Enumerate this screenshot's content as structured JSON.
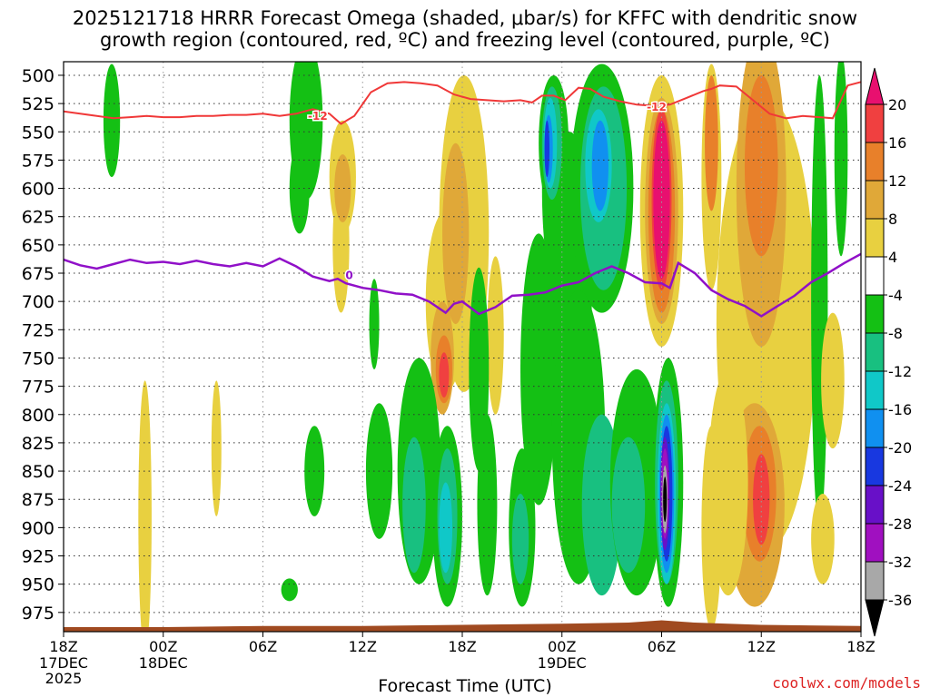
{
  "chart_data": {
    "type": "heatmap",
    "title_line1": "2025121718 HRRR Forecast Omega (shaded, μbar/s) for KFFC with dendritic snow",
    "title_line2": "growth region (contoured, red, ºC) and freezing level (contoured, purple, ºC)",
    "xlabel": "Forecast Time (UTC)",
    "credit": "coolwx.com/models",
    "y_ticks": [
      "500",
      "525",
      "550",
      "575",
      "600",
      "625",
      "650",
      "675",
      "700",
      "725",
      "750",
      "775",
      "800",
      "825",
      "850",
      "875",
      "900",
      "925",
      "950",
      "975"
    ],
    "y_levels": [
      500,
      525,
      550,
      575,
      600,
      625,
      650,
      675,
      700,
      725,
      750,
      775,
      800,
      825,
      850,
      875,
      900,
      925,
      950,
      975
    ],
    "x_ticks": [
      {
        "hour": 0,
        "line1": "18Z",
        "line2": "17DEC",
        "line3": "2025"
      },
      {
        "hour": 6,
        "line1": "00Z",
        "line2": "18DEC",
        "line3": ""
      },
      {
        "hour": 12,
        "line1": "06Z",
        "line2": "",
        "line3": ""
      },
      {
        "hour": 18,
        "line1": "12Z",
        "line2": "",
        "line3": ""
      },
      {
        "hour": 24,
        "line1": "18Z",
        "line2": "",
        "line3": ""
      },
      {
        "hour": 30,
        "line1": "00Z",
        "line2": "19DEC",
        "line3": ""
      },
      {
        "hour": 36,
        "line1": "06Z",
        "line2": "",
        "line3": ""
      },
      {
        "hour": 42,
        "line1": "12Z",
        "line2": "",
        "line3": ""
      },
      {
        "hour": 48,
        "line1": "18Z",
        "line2": "",
        "line3": ""
      }
    ],
    "x_range_hours": [
      0,
      48
    ],
    "y_range_mb": [
      488,
      992
    ],
    "colorbar": {
      "labels": [
        "20",
        "16",
        "12",
        "8",
        "4",
        "-4",
        "-8",
        "-12",
        "-16",
        "-20",
        "-24",
        "-28",
        "-32",
        "-36"
      ],
      "colors": [
        "#e8106f",
        "#f04040",
        "#e8802a",
        "#e0a838",
        "#e8d040",
        "#ffffff",
        "#14c014",
        "#18c080",
        "#10c8c8",
        "#1090f0",
        "#1838e0",
        "#6810c8",
        "#a010c0",
        "#a8a8a8",
        "#000000"
      ]
    },
    "snow_growth_label": "-12",
    "freezing_label": "0",
    "snow_growth_contour": [
      [
        0,
        532
      ],
      [
        1,
        534
      ],
      [
        2,
        536
      ],
      [
        3,
        538
      ],
      [
        4,
        537
      ],
      [
        5,
        536
      ],
      [
        6,
        537
      ],
      [
        7,
        537
      ],
      [
        8,
        536
      ],
      [
        9,
        536
      ],
      [
        10,
        535
      ],
      [
        11,
        535
      ],
      [
        12,
        534
      ],
      [
        13,
        536
      ],
      [
        14,
        534
      ],
      [
        15,
        530
      ],
      [
        16,
        534
      ],
      [
        16.7,
        543
      ],
      [
        17.5,
        536
      ],
      [
        18.5,
        515
      ],
      [
        19.5,
        507
      ],
      [
        20.5,
        506
      ],
      [
        21.5,
        507
      ],
      [
        22.5,
        509
      ],
      [
        23.5,
        517
      ],
      [
        24.5,
        521
      ],
      [
        25.5,
        522
      ],
      [
        26.5,
        523
      ],
      [
        27.5,
        522
      ],
      [
        28.2,
        524
      ],
      [
        28.8,
        518
      ],
      [
        29.5,
        518
      ],
      [
        30.2,
        522
      ],
      [
        31,
        511
      ],
      [
        31.7,
        512
      ],
      [
        32.5,
        519
      ],
      [
        33.5,
        523
      ],
      [
        34.5,
        526
      ],
      [
        35.5,
        527
      ],
      [
        36.5,
        526
      ],
      [
        37.5,
        520
      ],
      [
        38.5,
        514
      ],
      [
        39,
        512
      ],
      [
        39.5,
        509
      ],
      [
        40.5,
        510
      ],
      [
        41.5,
        522
      ],
      [
        42.5,
        534
      ],
      [
        43.5,
        538
      ],
      [
        44.5,
        536
      ],
      [
        45.5,
        537
      ],
      [
        46.3,
        538
      ],
      [
        47.2,
        509
      ],
      [
        48,
        506
      ]
    ],
    "freezing_contour": [
      [
        0,
        663
      ],
      [
        1,
        668
      ],
      [
        2,
        671
      ],
      [
        3,
        667
      ],
      [
        4,
        663
      ],
      [
        5,
        666
      ],
      [
        6,
        665
      ],
      [
        7,
        667
      ],
      [
        8,
        664
      ],
      [
        9,
        667
      ],
      [
        10,
        669
      ],
      [
        11,
        666
      ],
      [
        12,
        669
      ],
      [
        13,
        662
      ],
      [
        14,
        669
      ],
      [
        15,
        678
      ],
      [
        16,
        682
      ],
      [
        16.5,
        680
      ],
      [
        17,
        684
      ],
      [
        18,
        688
      ],
      [
        19,
        690
      ],
      [
        20,
        693
      ],
      [
        21,
        694
      ],
      [
        22,
        700
      ],
      [
        23,
        710
      ],
      [
        23.5,
        702
      ],
      [
        24,
        700
      ],
      [
        25,
        711
      ],
      [
        26,
        705
      ],
      [
        27,
        695
      ],
      [
        28,
        694
      ],
      [
        29,
        692
      ],
      [
        30,
        686
      ],
      [
        31,
        683
      ],
      [
        32,
        675
      ],
      [
        33,
        669
      ],
      [
        34,
        675
      ],
      [
        35,
        683
      ],
      [
        36,
        684
      ],
      [
        36.5,
        688
      ],
      [
        37,
        666
      ],
      [
        38,
        675
      ],
      [
        39,
        690
      ],
      [
        40,
        698
      ],
      [
        41,
        704
      ],
      [
        42,
        713
      ],
      [
        43,
        704
      ],
      [
        44,
        695
      ],
      [
        45,
        683
      ],
      [
        46,
        675
      ],
      [
        47,
        666
      ],
      [
        48,
        658
      ]
    ],
    "terrain_mb": [
      [
        0,
        988
      ],
      [
        6,
        988
      ],
      [
        12,
        987
      ],
      [
        18,
        987
      ],
      [
        24,
        986
      ],
      [
        30,
        985
      ],
      [
        34,
        984
      ],
      [
        36,
        982
      ],
      [
        38,
        984
      ],
      [
        42,
        986
      ],
      [
        48,
        987
      ]
    ]
  }
}
